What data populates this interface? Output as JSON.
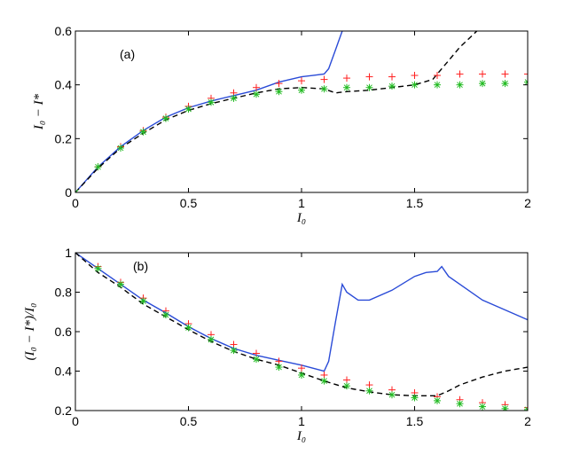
{
  "chart_data": [
    {
      "panel_label": "(a)",
      "type": "line",
      "xlabel": "I₀",
      "ylabel": "I₀ − I*",
      "xlim": [
        0,
        2
      ],
      "ylim": [
        0,
        0.6
      ],
      "xticks": [
        0,
        0.5,
        1,
        1.5,
        2
      ],
      "xtick_labels": [
        "0",
        "0.5",
        "1",
        "1.5",
        "2"
      ],
      "yticks": [
        0,
        0.2,
        0.4,
        0.6
      ],
      "ytick_labels": [
        "0",
        "0.2",
        "0.4",
        "0.6"
      ],
      "grid": false,
      "series": [
        {
          "style": "solid",
          "color": "#2a4bd7",
          "x": [
            0,
            0.1,
            0.2,
            0.3,
            0.4,
            0.5,
            0.6,
            0.7,
            0.8,
            0.9,
            1.0,
            1.05,
            1.1,
            1.12,
            1.15,
            1.18,
            1.2
          ],
          "y": [
            0,
            0.095,
            0.17,
            0.23,
            0.28,
            0.315,
            0.34,
            0.36,
            0.38,
            0.41,
            0.43,
            0.435,
            0.44,
            0.46,
            0.53,
            0.6,
            0.62
          ]
        },
        {
          "style": "dashed",
          "color": "#000000",
          "x": [
            0,
            0.1,
            0.2,
            0.3,
            0.4,
            0.5,
            0.6,
            0.7,
            0.8,
            0.9,
            1.0,
            1.1,
            1.15,
            1.2,
            1.3,
            1.4,
            1.5,
            1.58,
            1.6,
            1.65,
            1.7,
            1.75,
            1.8
          ],
          "y": [
            0,
            0.09,
            0.165,
            0.22,
            0.27,
            0.305,
            0.33,
            0.35,
            0.37,
            0.385,
            0.39,
            0.385,
            0.37,
            0.375,
            0.38,
            0.39,
            0.4,
            0.42,
            0.44,
            0.49,
            0.54,
            0.58,
            0.62
          ]
        },
        {
          "style": "marker",
          "marker": "+",
          "color": "#ff2020",
          "x": [
            0,
            0.1,
            0.2,
            0.3,
            0.4,
            0.5,
            0.6,
            0.7,
            0.8,
            0.9,
            1.0,
            1.1,
            1.2,
            1.3,
            1.4,
            1.5,
            1.6,
            1.7,
            1.8,
            1.9,
            2.0
          ],
          "y": [
            0,
            0.095,
            0.17,
            0.23,
            0.28,
            0.32,
            0.35,
            0.37,
            0.39,
            0.405,
            0.415,
            0.42,
            0.425,
            0.43,
            0.43,
            0.435,
            0.435,
            0.44,
            0.44,
            0.44,
            0.44
          ]
        },
        {
          "style": "marker",
          "marker": "*",
          "color": "#22bb22",
          "x": [
            0,
            0.1,
            0.2,
            0.3,
            0.4,
            0.5,
            0.6,
            0.7,
            0.8,
            0.9,
            1.0,
            1.1,
            1.2,
            1.3,
            1.4,
            1.5,
            1.6,
            1.7,
            1.8,
            1.9,
            2.0
          ],
          "y": [
            0,
            0.095,
            0.165,
            0.225,
            0.275,
            0.31,
            0.335,
            0.35,
            0.365,
            0.375,
            0.38,
            0.385,
            0.39,
            0.39,
            0.395,
            0.4,
            0.4,
            0.4,
            0.405,
            0.405,
            0.41
          ]
        }
      ]
    },
    {
      "panel_label": "(b)",
      "type": "line",
      "xlabel": "I₀",
      "ylabel": "(I₀ − I*)/I₀",
      "xlim": [
        0,
        2
      ],
      "ylim": [
        0.2,
        1
      ],
      "xticks": [
        0,
        0.5,
        1,
        1.5,
        2
      ],
      "xtick_labels": [
        "0",
        "0.5",
        "1",
        "1.5",
        "2"
      ],
      "yticks": [
        0.2,
        0.4,
        0.6,
        0.8,
        1
      ],
      "ytick_labels": [
        "0.2",
        "0.4",
        "0.6",
        "0.8",
        "1"
      ],
      "grid": false,
      "series": [
        {
          "style": "solid",
          "color": "#2a4bd7",
          "x": [
            0,
            0.1,
            0.2,
            0.3,
            0.4,
            0.5,
            0.6,
            0.7,
            0.8,
            0.9,
            1.0,
            1.05,
            1.1,
            1.12,
            1.15,
            1.18,
            1.2,
            1.25,
            1.3,
            1.4,
            1.5,
            1.55,
            1.6,
            1.62,
            1.65,
            1.7,
            1.8,
            1.9,
            2.0
          ],
          "y": [
            1,
            0.92,
            0.84,
            0.76,
            0.695,
            0.625,
            0.565,
            0.515,
            0.48,
            0.455,
            0.43,
            0.415,
            0.4,
            0.45,
            0.65,
            0.84,
            0.8,
            0.76,
            0.76,
            0.81,
            0.88,
            0.9,
            0.905,
            0.93,
            0.88,
            0.84,
            0.76,
            0.71,
            0.66
          ]
        },
        {
          "style": "dashed",
          "color": "#000000",
          "x": [
            0,
            0.1,
            0.2,
            0.3,
            0.4,
            0.5,
            0.6,
            0.7,
            0.8,
            0.9,
            1.0,
            1.1,
            1.2,
            1.3,
            1.4,
            1.5,
            1.6,
            1.65,
            1.7,
            1.8,
            1.9,
            2.0
          ],
          "y": [
            1,
            0.9,
            0.825,
            0.74,
            0.675,
            0.61,
            0.55,
            0.5,
            0.46,
            0.43,
            0.39,
            0.35,
            0.315,
            0.295,
            0.28,
            0.275,
            0.275,
            0.3,
            0.33,
            0.37,
            0.4,
            0.42
          ]
        },
        {
          "style": "marker",
          "marker": "+",
          "color": "#ff2020",
          "x": [
            0.1,
            0.2,
            0.3,
            0.4,
            0.5,
            0.6,
            0.7,
            0.8,
            0.9,
            1.0,
            1.1,
            1.2,
            1.3,
            1.4,
            1.5,
            1.6,
            1.7,
            1.8,
            1.9,
            2.0
          ],
          "y": [
            0.93,
            0.85,
            0.77,
            0.705,
            0.64,
            0.585,
            0.535,
            0.49,
            0.45,
            0.415,
            0.38,
            0.355,
            0.33,
            0.305,
            0.29,
            0.27,
            0.255,
            0.24,
            0.23,
            0.215
          ]
        },
        {
          "style": "marker",
          "marker": "*",
          "color": "#22bb22",
          "x": [
            0.1,
            0.2,
            0.3,
            0.4,
            0.5,
            0.6,
            0.7,
            0.8,
            0.9,
            1.0,
            1.1,
            1.2,
            1.3,
            1.4,
            1.5,
            1.6,
            1.7,
            1.8,
            1.9,
            2.0
          ],
          "y": [
            0.92,
            0.84,
            0.755,
            0.685,
            0.62,
            0.56,
            0.505,
            0.46,
            0.42,
            0.38,
            0.35,
            0.325,
            0.3,
            0.28,
            0.265,
            0.25,
            0.235,
            0.22,
            0.21,
            0.205
          ]
        }
      ]
    }
  ]
}
